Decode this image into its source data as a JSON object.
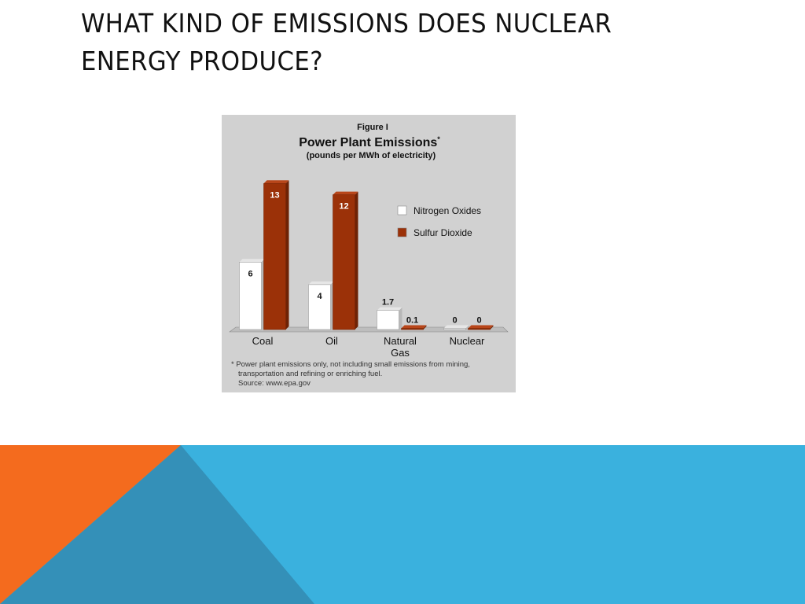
{
  "slide": {
    "title": "WHAT KIND OF EMISSIONS DOES NUCLEAR ENERGY PRODUCE?"
  },
  "colors": {
    "figure_background": "#d1d1d1",
    "nitrogen_oxides": "#ffffff",
    "sulfur_dioxide": "#9b3108",
    "band_blue": "#3ab1de",
    "band_orange": "#f46b1e",
    "band_steel": "#3490b8"
  },
  "chart_data": {
    "type": "bar",
    "figure_label": "Figure I",
    "title": "Power Plant Emissions",
    "title_marker": "*",
    "subtitle": "(pounds per MWh of electricity)",
    "categories": [
      "Coal",
      "Oil",
      "Natural Gas",
      "Nuclear"
    ],
    "series": [
      {
        "name": "Nitrogen Oxides",
        "values": [
          6,
          4,
          1.7,
          0
        ],
        "labels": [
          "6",
          "4",
          "1.7",
          "0"
        ],
        "color": "#ffffff"
      },
      {
        "name": "Sulfur Dioxide",
        "values": [
          13,
          12,
          0.1,
          0
        ],
        "labels": [
          "13",
          "12",
          "0.1",
          "0"
        ],
        "color": "#9b3108"
      }
    ],
    "ylim": [
      0,
      14
    ],
    "grid": false,
    "legend_position": "right",
    "footnote": [
      "* Power plant emissions only, not including small emissions from mining,",
      "transportation and refining or enriching fuel.",
      "Source: www.epa.gov"
    ]
  }
}
